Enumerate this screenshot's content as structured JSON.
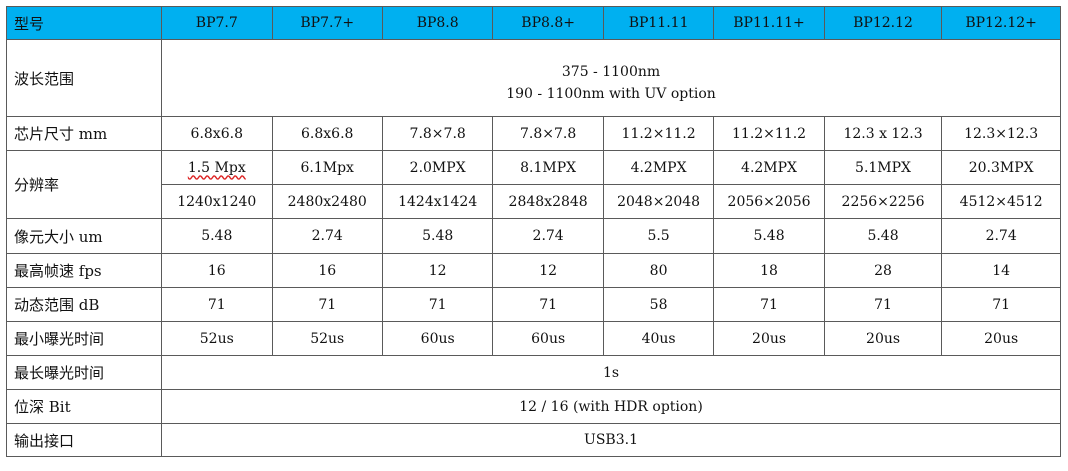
{
  "header": {
    "label": "型号",
    "models": [
      "BP7.7",
      "BP7.7+",
      "BP8.8",
      "BP8.8+",
      "BP11.11",
      "BP11.11+",
      "BP12.12",
      "BP12.12+"
    ]
  },
  "rows": {
    "wavelength": {
      "label": "波长范围",
      "line1": "375 - 1100nm",
      "line2": "190 - 1100nm with UV option"
    },
    "chip_size": {
      "label": "芯片尺寸 mm",
      "values": [
        "6.8x6.8",
        "6.8x6.8",
        "7.8×7.8",
        "7.8×7.8",
        "11.2×11.2",
        "11.2×11.2",
        "12.3 x 12.3",
        "12.3×12.3"
      ]
    },
    "resolution": {
      "label": "分辨率",
      "mpx": [
        "1.5 Mpx",
        "6.1Mpx",
        "2.0MPX",
        "8.1MPX",
        "4.2MPX",
        "4.2MPX",
        "5.1MPX",
        "20.3MPX"
      ],
      "pixels": [
        "1240x1240",
        "2480x2480",
        "1424x1424",
        "2848x2848",
        "2048×2048",
        "2056×2056",
        "2256×2256",
        "4512×4512"
      ]
    },
    "pixel_size": {
      "label": "像元大小 um",
      "values": [
        "5.48",
        "2.74",
        "5.48",
        "2.74",
        "5.5",
        "5.48",
        "5.48",
        "2.74"
      ]
    },
    "fps": {
      "label": "最高帧速 fps",
      "values": [
        "16",
        "16",
        "12",
        "12",
        "80",
        "18",
        "28",
        "14"
      ]
    },
    "dynamic_range": {
      "label": "动态范围 dB",
      "values": [
        "71",
        "71",
        "71",
        "71",
        "58",
        "71",
        "71",
        "71"
      ]
    },
    "min_exposure": {
      "label": "最小曝光时间",
      "values": [
        "52us",
        "52us",
        "60us",
        "60us",
        "40us",
        "20us",
        "20us",
        "20us"
      ]
    },
    "max_exposure": {
      "label": "最长曝光时间",
      "value": "1s"
    },
    "bit_depth": {
      "label": "位深 Bit",
      "value": "12 / 16 (with HDR option)"
    },
    "output": {
      "label": "输出接口",
      "value": "USB3.1"
    }
  }
}
